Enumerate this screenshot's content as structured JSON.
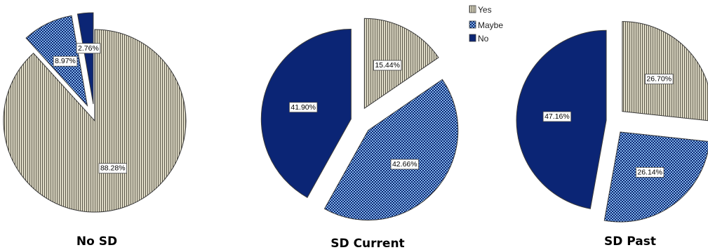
{
  "chart_data": [
    {
      "type": "pie",
      "title": "No SD",
      "categories": [
        "Yes",
        "Maybe",
        "No"
      ],
      "values": [
        88.28,
        8.97,
        2.76
      ],
      "labels": [
        "88.28%",
        "8.97%",
        "2.76%"
      ]
    },
    {
      "type": "pie",
      "title": "SD Current",
      "categories": [
        "Yes",
        "Maybe",
        "No"
      ],
      "values": [
        15.44,
        42.66,
        41.9
      ],
      "labels": [
        "15.44%",
        "42.66%",
        "41.90%"
      ]
    },
    {
      "type": "pie",
      "title": "SD Past",
      "categories": [
        "Yes",
        "Maybe",
        "No"
      ],
      "values": [
        26.7,
        26.14,
        47.16
      ],
      "labels": [
        "26.70%",
        "26.14%",
        "47.16%"
      ]
    }
  ],
  "legend": {
    "placement": "top-center",
    "items": [
      {
        "label": "Yes",
        "pattern": "vertical-stripes"
      },
      {
        "label": "Maybe",
        "pattern": "checkerboard"
      },
      {
        "label": "No",
        "pattern": "solid"
      }
    ]
  },
  "colors": {
    "yes_fill": "#dcd8c4",
    "yes_stripe": "#5e5a4c",
    "maybe_base": "#7fb3e8",
    "maybe_check": "#0d2572",
    "no_fill": "#0b2575",
    "outline": "#3a3a3a"
  }
}
